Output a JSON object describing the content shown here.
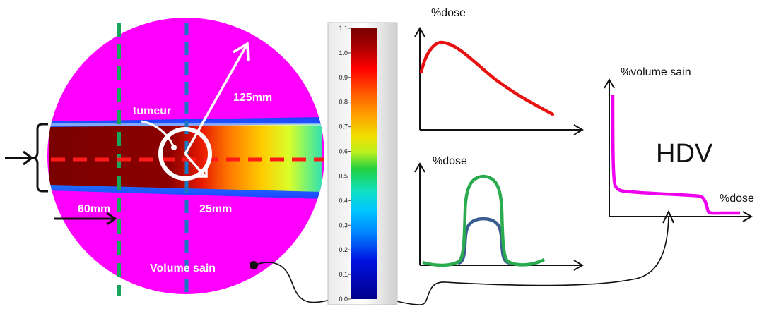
{
  "colors": {
    "volume": "#ff00ff",
    "beam_red_line": "#ff1a1a",
    "green_line": "#1aa55a",
    "blue_line": "#1a78c2",
    "pdd_curve": "#e81010",
    "profile_outer": "#2bab4f",
    "profile_inner": "#3a5d8f",
    "hdv_curve": "#ee00ee"
  },
  "phantom": {
    "label_tumeur": "tumeur",
    "label_radius": "125mm",
    "label_60": "60mm",
    "label_25": "25mm",
    "label_volume_sain": "Volume sain"
  },
  "colorbar": {
    "ticks": [
      "1.1",
      "1.0",
      "0.9",
      "0.8",
      "0.7",
      "0.6",
      "0.5",
      "0.4",
      "0.3",
      "0.2",
      "0.1",
      "0.0"
    ]
  },
  "pdd_plot": {
    "ylabel": "%dose"
  },
  "profile_plot": {
    "ylabel": "%dose"
  },
  "hdv_plot": {
    "ylabel": "%volume sain",
    "xlabel": "%dose",
    "title": "HDV"
  }
}
